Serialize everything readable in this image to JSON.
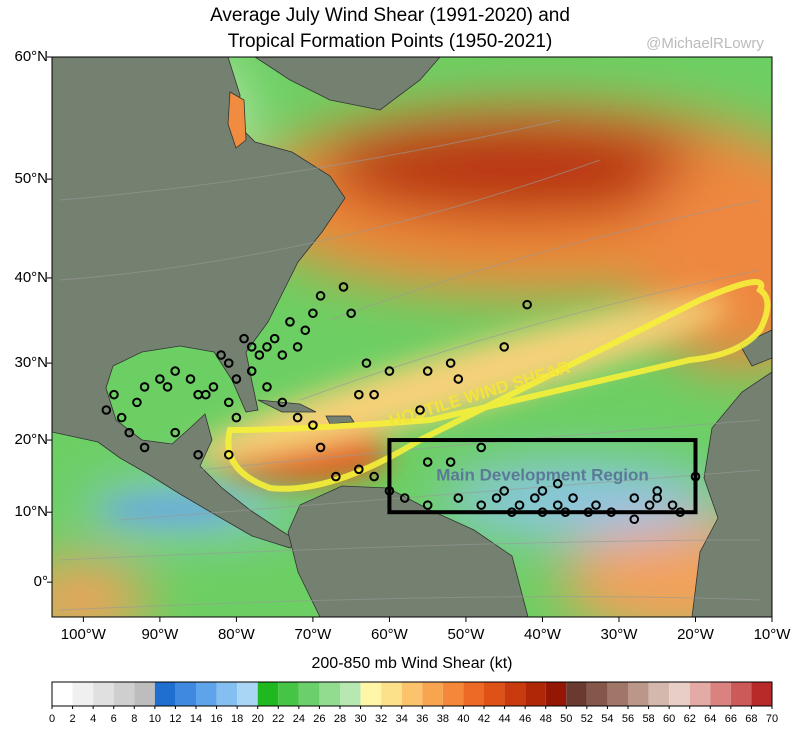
{
  "chart_data": {
    "type": "map",
    "title": "Average July Wind Shear (1991-2020) and",
    "subtitle": "Tropical Formation Points (1950-2021)",
    "credit": "@MichaelRLowry",
    "xlim": [
      -104.1,
      -10
    ],
    "ylim": [
      -5,
      60
    ],
    "xticks": [
      {
        "value": -100,
        "label": "100°W"
      },
      {
        "value": -90,
        "label": "90°W"
      },
      {
        "value": -80,
        "label": "80°W"
      },
      {
        "value": -70,
        "label": "70°W"
      },
      {
        "value": -60,
        "label": "60°W"
      },
      {
        "value": -50,
        "label": "50°W"
      },
      {
        "value": -40,
        "label": "40°W"
      },
      {
        "value": -30,
        "label": "30°W"
      },
      {
        "value": -20,
        "label": "20°W"
      },
      {
        "value": -10,
        "label": "10°W"
      }
    ],
    "yticks": [
      {
        "value": 0,
        "label": "0°"
      },
      {
        "value": 10,
        "label": "10°N"
      },
      {
        "value": 20,
        "label": "20°N"
      },
      {
        "value": 30,
        "label": "30°N"
      },
      {
        "value": 40,
        "label": "40°N"
      },
      {
        "value": 50,
        "label": "50°N"
      },
      {
        "value": 60,
        "label": "60°N"
      }
    ],
    "annotations": [
      "HOSTILE WIND SHEAR"
    ],
    "region": {
      "label": "Main Development Region",
      "lon": [
        -60,
        -20
      ],
      "lat": [
        10,
        20
      ]
    },
    "points": {
      "lon": [
        -55,
        -52,
        -48,
        -58,
        -55,
        -51,
        -48,
        -46,
        -45,
        -43,
        -41,
        -40,
        -38,
        -37,
        -36,
        -34,
        -33,
        -31,
        -28,
        -26,
        -25,
        -23,
        -22,
        -28,
        -38,
        -25,
        -20,
        -44,
        -40,
        -96,
        -95,
        -94,
        -93,
        -92,
        -90,
        -89,
        -88,
        -86,
        -85,
        -84,
        -83,
        -81,
        -80,
        -92,
        -88,
        -85,
        -81,
        -80,
        -78,
        -77,
        -76,
        -75,
        -74,
        -72,
        -71,
        -73,
        -79,
        -78,
        -76,
        -74,
        -72,
        -70,
        -69,
        -67,
        -64,
        -62,
        -60,
        -64,
        -62,
        -60,
        -55,
        -52,
        -51,
        -56,
        -45,
        -42,
        -66,
        -65,
        -70,
        -69,
        -63,
        -97,
        -82,
        -81
      ],
      "lat": [
        17,
        17,
        19,
        12,
        11,
        12,
        11,
        12,
        13,
        11,
        12,
        13,
        11,
        10,
        12,
        10,
        11,
        10,
        12,
        11,
        12,
        11,
        10,
        9,
        14,
        13,
        15,
        10,
        10,
        26,
        23,
        21,
        25,
        27,
        28,
        27,
        29,
        28,
        26,
        26,
        27,
        25,
        23,
        19,
        21,
        18,
        18,
        28,
        29,
        31,
        32,
        33,
        31,
        32,
        34,
        35,
        33,
        32,
        27,
        25,
        23,
        22,
        19,
        15,
        16,
        15,
        13,
        26,
        26,
        29,
        29,
        30,
        28,
        24,
        32,
        37,
        39,
        36,
        36,
        38,
        30,
        24,
        31,
        30
      ]
    },
    "colorbar": {
      "label": "200-850 mb Wind Shear (kt)",
      "lim": [
        0,
        70
      ],
      "ticks": [
        0,
        2,
        4,
        6,
        8,
        10,
        12,
        14,
        16,
        18,
        20,
        22,
        24,
        26,
        28,
        30,
        32,
        34,
        36,
        38,
        40,
        42,
        44,
        46,
        48,
        50,
        52,
        54,
        56,
        58,
        60,
        62,
        64,
        66,
        68,
        70
      ],
      "colors": [
        "#ffffff",
        "#f0f0f0",
        "#e0e0e0",
        "#cfcfcf",
        "#bdbdbd",
        "#1f6fd1",
        "#3f8ae0",
        "#5ea4ea",
        "#84bff1",
        "#aad6f6",
        "#1fb81f",
        "#45c445",
        "#6bd06b",
        "#92dc8f",
        "#b8e8b2",
        "#fff6a8",
        "#fde08a",
        "#fbc46c",
        "#f8a550",
        "#f4873a",
        "#ec6a26",
        "#de5117",
        "#c93a0e",
        "#b02708",
        "#941605",
        "#6a3a30",
        "#85564a",
        "#a07668",
        "#bb978a",
        "#d4b8ad",
        "#e7cfc8",
        "#e3aaa6",
        "#d98280",
        "#cc5a58",
        "#b82a2a"
      ]
    }
  }
}
